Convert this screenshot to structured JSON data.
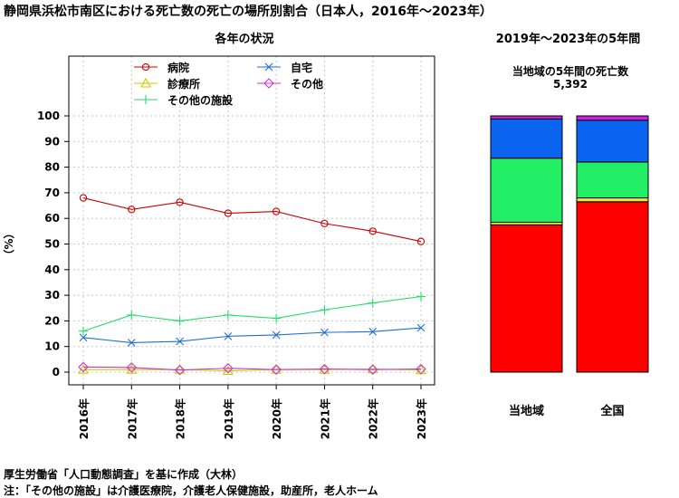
{
  "title": "静岡県浜松市南区における死亡数の死亡の場所別割合（日本人，2016年～2023年）",
  "left_panel_title": "各年の状況",
  "right_panel_title": "2019年～2023年の5年間",
  "right_panel_subtitle": "当地域の5年間の死亡数",
  "right_panel_count": "5,392",
  "notes": [
    "厚生労働省「人口動態調査」を基に作成（大林）",
    "注：「その他の施設」は介護医療院，介護老人保健施設，助産所，老人ホーム"
  ],
  "chart_data": [
    {
      "type": "line",
      "title": "各年の状況",
      "ylabel": "（%）",
      "ylim": [
        0,
        100
      ],
      "yticks": [
        "0",
        "10",
        "20",
        "30",
        "40",
        "50",
        "60",
        "70",
        "80",
        "90",
        "100"
      ],
      "categories": [
        "2016年",
        "2017年",
        "2018年",
        "2019年",
        "2020年",
        "2021年",
        "2022年",
        "2023年"
      ],
      "grid": true,
      "legend_position": "top",
      "series": [
        {
          "name": "病院",
          "color": "#cc0000",
          "marker": "circle",
          "values": [
            68.0,
            63.5,
            66.3,
            62.0,
            62.7,
            58.0,
            55.0,
            51.0
          ]
        },
        {
          "name": "自宅",
          "color": "#1f6fd1",
          "marker": "x",
          "values": [
            13.5,
            11.5,
            12.0,
            14.0,
            14.5,
            15.5,
            15.8,
            17.3
          ]
        },
        {
          "name": "診療所",
          "color": "#cccc00",
          "marker": "triangle",
          "values": [
            1.0,
            1.0,
            1.0,
            0.5,
            1.0,
            1.0,
            1.2,
            0.8
          ]
        },
        {
          "name": "その他",
          "color": "#cc33cc",
          "marker": "diamond",
          "values": [
            2.0,
            1.8,
            0.8,
            1.5,
            1.0,
            1.2,
            1.0,
            1.2
          ]
        },
        {
          "name": "その他の施設",
          "color": "#22dd66",
          "marker": "plus",
          "values": [
            16.0,
            22.3,
            20.0,
            22.3,
            21.0,
            24.3,
            27.0,
            29.5
          ]
        }
      ]
    },
    {
      "type": "bar",
      "stacked": true,
      "title": "2019年～2023年の5年間",
      "categories": [
        "当地域",
        "全国"
      ],
      "ylim": [
        0,
        100
      ],
      "series": [
        {
          "name": "病院",
          "color": "#ff0000",
          "values": [
            57.5,
            66.5
          ]
        },
        {
          "name": "診療所",
          "color": "#e8e840",
          "values": [
            1.0,
            1.5
          ]
        },
        {
          "name": "その他の施設",
          "color": "#22ee66",
          "values": [
            25.0,
            14.0
          ]
        },
        {
          "name": "自宅",
          "color": "#0a64f0",
          "values": [
            15.3,
            16.3
          ]
        },
        {
          "name": "その他",
          "color": "#cc22dd",
          "values": [
            1.2,
            1.7
          ]
        }
      ]
    }
  ]
}
